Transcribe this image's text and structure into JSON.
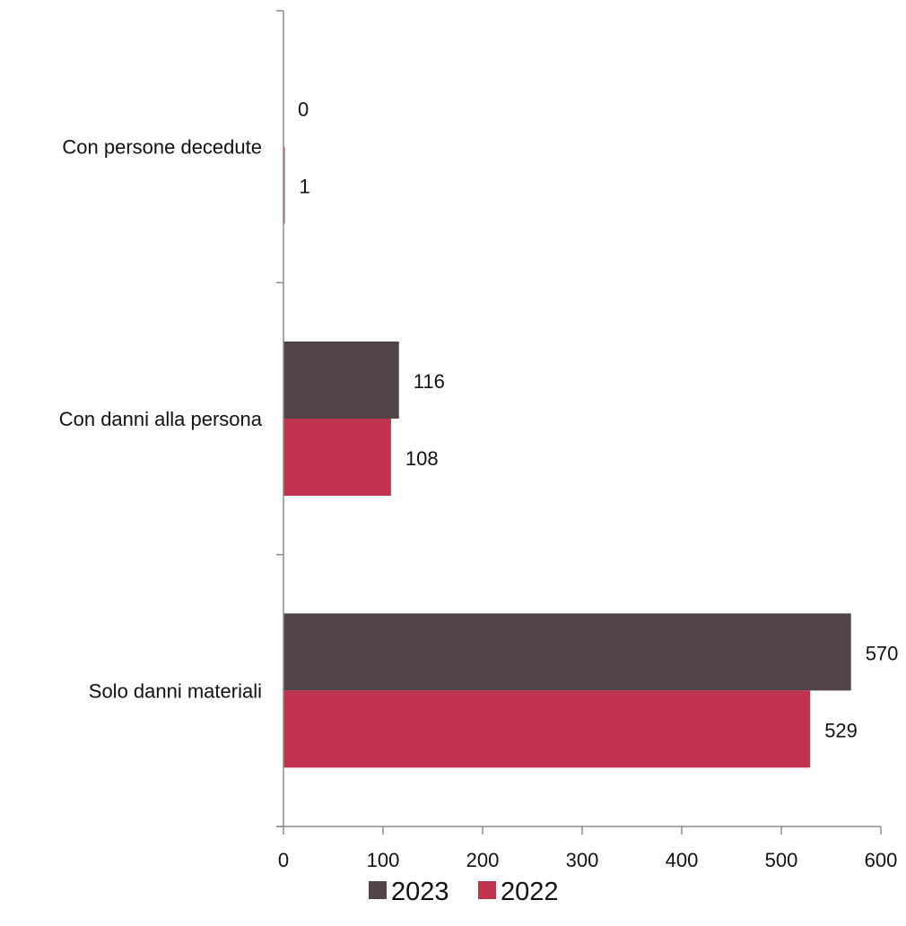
{
  "chart_data": {
    "type": "bar",
    "orientation": "horizontal",
    "categories": [
      "Con persone decedute",
      "Con danni alla persona",
      "Solo danni materiali"
    ],
    "series": [
      {
        "name": "2023",
        "values": [
          0,
          116,
          570
        ],
        "color": "#514346"
      },
      {
        "name": "2022",
        "values": [
          1,
          108,
          529
        ],
        "color": "#c23350"
      }
    ],
    "xlim": [
      0,
      600
    ],
    "x_ticks": [
      0,
      100,
      200,
      300,
      400,
      500,
      600
    ],
    "grid": false,
    "legend_position": "bottom",
    "data_labels": true
  }
}
